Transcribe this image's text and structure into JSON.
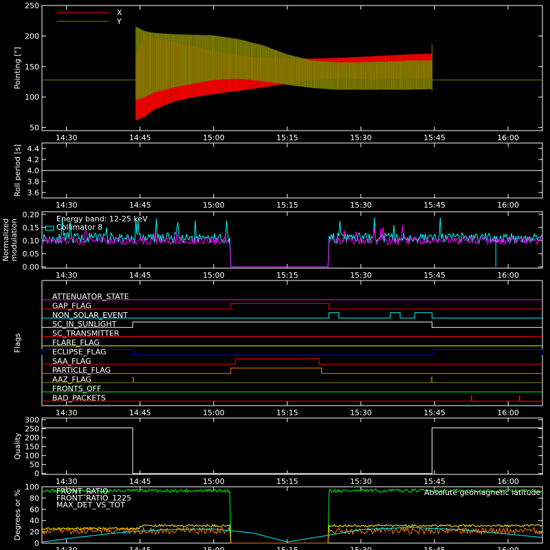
{
  "time_ticks": [
    "14:30",
    "14:45",
    "15:00",
    "15:15",
    "15:30",
    "15:45",
    "16:00"
  ],
  "time_tick_minutes": [
    870,
    885,
    900,
    915,
    930,
    945,
    960
  ],
  "x_range_minutes": [
    865,
    967
  ],
  "colors": {
    "background": "#000000",
    "axes": "#ffffff",
    "red": "#ff0000",
    "olive": "#7f7f00",
    "cyan": "#00ffff",
    "magenta": "#ff00ff",
    "orange": "#ff7f00",
    "yellow": "#ffff00",
    "green": "#00ff00",
    "blue": "#0000ff",
    "purple": "#bf3fff"
  },
  "chart_data": [
    {
      "type": "area",
      "ylabel": "Pointing [\"]",
      "ylim": [
        45,
        250
      ],
      "yticks": [
        50,
        100,
        150,
        200,
        250
      ],
      "legend": [
        "X",
        "Y"
      ],
      "baseline_value": 128,
      "series": [
        {
          "name": "X",
          "color": "red",
          "x": [
            884.2,
            886,
            888,
            892,
            896,
            900,
            905,
            910,
            915,
            920,
            925,
            930,
            935,
            940,
            944.5
          ],
          "upper": [
            170,
            200,
            196,
            190,
            183,
            175,
            168,
            164,
            163,
            163,
            164,
            166,
            168,
            170,
            171
          ],
          "lower": [
            62,
            68,
            80,
            93,
            100,
            105,
            110,
            116,
            122,
            128,
            130,
            130,
            130,
            130,
            130
          ]
        },
        {
          "name": "Y",
          "color": "olive",
          "x": [
            884.2,
            886,
            888,
            892,
            896,
            900,
            905,
            910,
            915,
            920,
            925,
            930,
            935,
            940,
            944.5
          ],
          "upper": [
            215,
            208,
            205,
            203,
            202,
            201,
            195,
            185,
            170,
            160,
            157,
            157,
            158,
            160,
            160
          ],
          "lower": [
            95,
            100,
            108,
            116,
            122,
            128,
            130,
            126,
            120,
            115,
            112,
            112,
            112,
            112,
            113
          ]
        }
      ]
    },
    {
      "type": "line",
      "ylabel": "Roll period [s]",
      "ylim": [
        3.5,
        4.5
      ],
      "yticks": [
        "3.6",
        "3.8",
        "4.0",
        "4.2",
        "4.4"
      ],
      "series": [
        {
          "name": "",
          "x": [
            865,
            967
          ],
          "y": [
            4.0,
            4.0
          ]
        }
      ]
    },
    {
      "type": "line",
      "ylabel": "Normalized\nmodulation",
      "ylim": [
        -0.005,
        0.21
      ],
      "yticks": [
        "0.00",
        "0.05",
        "0.10",
        "0.15",
        "0.20"
      ],
      "annotations": [
        "Energy band: 12-25 keV",
        "Collimator 8"
      ],
      "gaps": [
        [
          903.5,
          923.5
        ]
      ],
      "series": [
        {
          "name": "Collimator 8",
          "color": "cyan",
          "typical": 0.11,
          "spread": 0.02
        },
        {
          "name": "",
          "color": "magenta",
          "typical": 0.1,
          "spread": 0.015
        }
      ]
    },
    {
      "type": "line",
      "ylabel": "Flags",
      "flags": [
        {
          "name": "ATTENUATOR_STATE",
          "color": "magenta",
          "on": []
        },
        {
          "name": "GAP_FLAG",
          "color": "red",
          "on": [
            [
              903.5,
              923.5
            ]
          ]
        },
        {
          "name": "NON_SOLAR_EVENT",
          "color": "cyan",
          "on": [
            [
              923.5,
              925.5
            ],
            [
              936,
              938
            ],
            [
              941,
              944.5
            ]
          ]
        },
        {
          "name": "SC_IN_SUNLIGHT",
          "color": "white",
          "on": [
            [
              883.5,
              944.5
            ]
          ]
        },
        {
          "name": "SC_TRANSMITTER",
          "color": "red",
          "on": []
        },
        {
          "name": "FLARE_FLAG",
          "color": "yellow",
          "on": []
        },
        {
          "name": "ECLIPSE_FLAG",
          "color": "blue",
          "on": [
            [
              865,
              883.5
            ],
            [
              944.5,
              967
            ]
          ]
        },
        {
          "name": "SAA_FLAG",
          "color": "red",
          "on": [
            [
              904.5,
              921.5
            ]
          ]
        },
        {
          "name": "PARTICLE_FLAG",
          "color": "orange",
          "on": [
            [
              903.5,
              922
            ]
          ]
        },
        {
          "name": "AAZ_FLAG",
          "color": "olive",
          "on": [
            [
              883.5,
              883.7
            ],
            [
              944.3,
              944.5
            ]
          ]
        },
        {
          "name": "FRONTS_OFF",
          "color": "green",
          "on": []
        },
        {
          "name": "BAD_PACKETS",
          "color": "red",
          "on": [
            [
              952.5,
              952.6
            ],
            [
              962.3,
              962.4
            ]
          ]
        }
      ]
    },
    {
      "type": "line",
      "ylabel": "Quality",
      "ylim": [
        -5,
        310
      ],
      "yticks": [
        0,
        50,
        100,
        150,
        200,
        250,
        300
      ],
      "series": [
        {
          "name": "",
          "x": [
            865,
            883.5,
            883.5,
            944.5,
            944.5,
            967
          ],
          "y": [
            255,
            255,
            0,
            0,
            255,
            255
          ]
        }
      ]
    },
    {
      "type": "line",
      "ylabel": "Degrees or %",
      "ylim": [
        0,
        100
      ],
      "yticks": [
        0,
        20,
        40,
        60,
        80,
        100
      ],
      "legend": [
        "FRONT_RATIO",
        "FRONT_RATIO_1225",
        "MAX_DET_VS_TOT"
      ],
      "annotations": [
        "Absolute geomagnetic latitude"
      ],
      "gaps": [
        [
          903.5,
          923.5
        ]
      ],
      "series": [
        {
          "name": "FRONT_RATIO",
          "color": "green",
          "typical": 93,
          "spread": 3
        },
        {
          "name": "FRONT_RATIO_1225",
          "color": "yellow",
          "typical": 30,
          "spread": 2
        },
        {
          "name": "MAX_DET_VS_TOT",
          "color": "orange",
          "typical": 22,
          "spread": 6
        },
        {
          "name": "Absolute geomagnetic latitude",
          "color": "cyan",
          "x": [
            865,
            872,
            880,
            890,
            900,
            908,
            915,
            922,
            930,
            940,
            950,
            960,
            967
          ],
          "y": [
            2,
            10,
            18,
            24,
            25,
            18,
            2,
            12,
            24,
            28,
            24,
            16,
            10
          ]
        }
      ]
    }
  ]
}
